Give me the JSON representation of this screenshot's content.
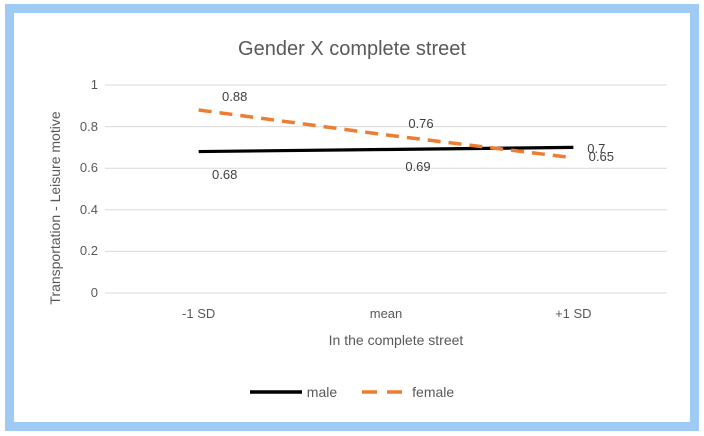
{
  "chart_data": {
    "type": "line",
    "title": "Gender X complete street",
    "xlabel": "In the complete street",
    "ylabel": "Transportation - Leisure motive",
    "categories": [
      "-1 SD",
      "mean",
      "+1 SD"
    ],
    "series": [
      {
        "name": "male",
        "values": [
          0.68,
          0.69,
          0.7
        ],
        "color": "#000000",
        "style": "solid"
      },
      {
        "name": "female",
        "values": [
          0.88,
          0.76,
          0.65
        ],
        "color": "#ED7D31",
        "style": "dashed"
      }
    ],
    "data_labels": {
      "male": [
        "0.68",
        "0.69",
        "0.7"
      ],
      "female": [
        "0.88",
        "0.76",
        "0.65"
      ]
    },
    "y_ticks": [
      0,
      0.2,
      0.4,
      0.6,
      0.8,
      1
    ],
    "ylim": [
      0,
      1
    ],
    "grid": true,
    "legend_position": "bottom",
    "colors": {
      "frame_border": "#9FCAF3",
      "gridline": "#D9D9D9",
      "axis_text": "#595959",
      "data_label_text": "#404040",
      "male_line": "#000000",
      "female_line": "#ED7D31"
    }
  }
}
